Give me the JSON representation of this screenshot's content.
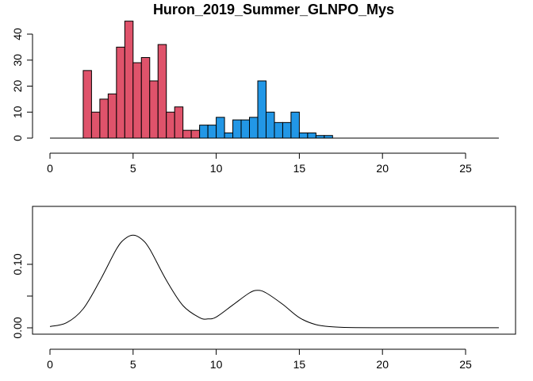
{
  "chart_data": [
    {
      "type": "bar",
      "title": "Huron_2019_Summer_GLNPO_Mys",
      "xlim": [
        0,
        27
      ],
      "ylim": [
        0,
        45
      ],
      "x_ticks": [
        0,
        5,
        10,
        15,
        20,
        25
      ],
      "y_ticks": [
        0,
        10,
        20,
        30,
        40
      ],
      "bin_width": 0.5,
      "series": [
        {
          "color": "#DF536B",
          "bins": [
            {
              "start": 2.0,
              "count": 26
            },
            {
              "start": 2.5,
              "count": 10
            },
            {
              "start": 3.0,
              "count": 15
            },
            {
              "start": 3.5,
              "count": 17
            },
            {
              "start": 4.0,
              "count": 35
            },
            {
              "start": 4.5,
              "count": 45
            },
            {
              "start": 5.0,
              "count": 29
            },
            {
              "start": 5.5,
              "count": 31
            },
            {
              "start": 6.0,
              "count": 22
            },
            {
              "start": 6.5,
              "count": 36
            },
            {
              "start": 7.0,
              "count": 10
            },
            {
              "start": 7.5,
              "count": 12
            },
            {
              "start": 8.0,
              "count": 3
            },
            {
              "start": 8.5,
              "count": 3
            },
            {
              "start": 9.0,
              "count": 4
            }
          ]
        },
        {
          "color": "#2297E6",
          "bins": [
            {
              "start": 9.0,
              "count": 5
            },
            {
              "start": 9.5,
              "count": 5
            },
            {
              "start": 10.0,
              "count": 8
            },
            {
              "start": 10.5,
              "count": 2
            },
            {
              "start": 11.0,
              "count": 7
            },
            {
              "start": 11.5,
              "count": 7
            },
            {
              "start": 12.0,
              "count": 8
            },
            {
              "start": 12.5,
              "count": 22
            },
            {
              "start": 13.0,
              "count": 10
            },
            {
              "start": 13.5,
              "count": 6
            },
            {
              "start": 14.0,
              "count": 6
            },
            {
              "start": 14.5,
              "count": 10
            },
            {
              "start": 15.0,
              "count": 2
            },
            {
              "start": 15.5,
              "count": 2
            },
            {
              "start": 16.0,
              "count": 1
            },
            {
              "start": 16.5,
              "count": 1
            }
          ]
        }
      ]
    },
    {
      "type": "line",
      "xlim": [
        0,
        27
      ],
      "ylim": [
        0,
        0.14
      ],
      "x_ticks": [
        0,
        5,
        10,
        15,
        20,
        25
      ],
      "y_ticks": [
        0.0,
        0.1
      ],
      "y_tick_labels": [
        "0.00",
        "0.10"
      ],
      "y_ticks_unlabeled": [
        0.05
      ],
      "series": [
        {
          "color": "#000000",
          "x": [
            0,
            1,
            2,
            3,
            4,
            4.5,
            5,
            5.5,
            6,
            7,
            8,
            9,
            9.5,
            10,
            11,
            12,
            12.5,
            13,
            14,
            15,
            16,
            17,
            18,
            20,
            22,
            25,
            27
          ],
          "y": [
            0.002,
            0.008,
            0.03,
            0.074,
            0.124,
            0.14,
            0.146,
            0.14,
            0.124,
            0.075,
            0.035,
            0.016,
            0.014,
            0.017,
            0.036,
            0.055,
            0.059,
            0.055,
            0.037,
            0.016,
            0.005,
            0.0015,
            0.0004,
            0.0002,
            0.0002,
            0.0002,
            0.0002
          ]
        }
      ]
    }
  ]
}
